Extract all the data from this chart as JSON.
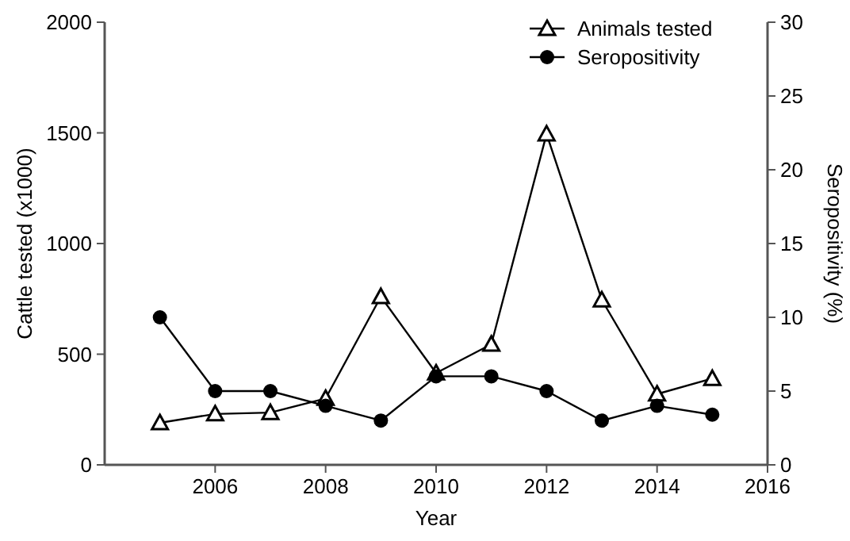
{
  "chart_data": {
    "type": "line",
    "xlabel": "Year",
    "ylabel": "Cattle tested (x1000)",
    "y2label": "Seropositivity (%)",
    "x": [
      2005,
      2006,
      2007,
      2008,
      2009,
      2010,
      2011,
      2012,
      2013,
      2014,
      2015
    ],
    "series": [
      {
        "name": "Animals tested",
        "color": "#000000",
        "marker": "triangle",
        "values": [
          190,
          230,
          236,
          300,
          760,
          415,
          545,
          1495,
          745,
          320,
          390
        ]
      },
      {
        "name": "Seropositivity",
        "color": "#000000",
        "marker": "circle",
        "axis": "y2",
        "values": [
          10,
          5,
          5,
          4,
          3,
          6,
          6,
          5,
          3,
          4,
          3.4
        ]
      }
    ],
    "xlim": [
      2004,
      2016
    ],
    "xticks": [
      2006,
      2008,
      2010,
      2012,
      2014,
      2016
    ],
    "ylim": [
      0,
      2000
    ],
    "yticks": [
      0,
      500,
      1000,
      1500,
      2000
    ],
    "y2lim": [
      0,
      30
    ],
    "y2ticks": [
      0,
      5,
      10,
      15,
      20,
      25,
      30
    ],
    "legend": "top right",
    "grid": false,
    "line_style": "solid"
  }
}
